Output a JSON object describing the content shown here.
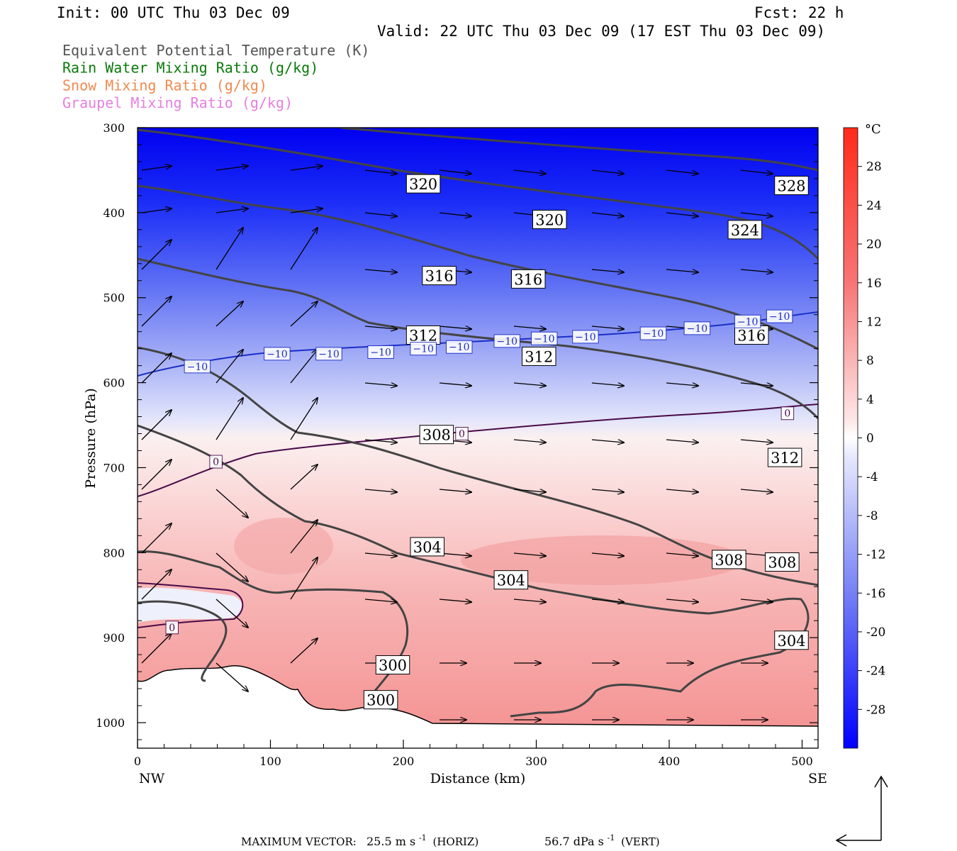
{
  "header": {
    "init": "Init: 00 UTC Thu 03 Dec 09",
    "fcst": "Fcst:   22 h",
    "valid": "Valid: 22 UTC Thu 03 Dec 09 (17 EST Thu 03 Dec 09)"
  },
  "legend": [
    {
      "label": "Equivalent Potential Temperature (K)",
      "color": "#555555"
    },
    {
      "label": "Rain Water Mixing Ratio (g/kg)",
      "color": "#0a7a0a"
    },
    {
      "label": "Snow Mixing Ratio (g/kg)",
      "color": "#f08a50"
    },
    {
      "label": "Graupel Mixing Ratio (g/kg)",
      "color": "#e77ee0"
    }
  ],
  "footer": {
    "max_vector_label": "MAXIMUM VECTOR:",
    "horiz_value": "25.5 m s",
    "horiz_unit": "(HORIZ)",
    "vert_value": "56.7 dPa s",
    "vert_unit": "(VERT)",
    "exponent": "-1"
  },
  "chart_data": {
    "type": "contour_cross_section",
    "xlabel": "Distance (km)",
    "ylabel": "Pressure (hPa)",
    "xlim": [
      0,
      512
    ],
    "ylim": [
      1030,
      300
    ],
    "x_ticks": [
      0,
      100,
      200,
      300,
      400,
      500
    ],
    "y_ticks": [
      300,
      400,
      500,
      600,
      700,
      800,
      900,
      1000
    ],
    "x_end_labels": {
      "left": "NW",
      "right": "SE"
    },
    "colorbar": {
      "unit": "°C",
      "ticks": [
        28,
        24,
        20,
        16,
        12,
        8,
        4,
        0,
        -4,
        -8,
        -12,
        -16,
        -20,
        -24,
        -28
      ],
      "range": [
        -32,
        32
      ],
      "cold_color": "#0000ff",
      "warm_color": "#ff2a1a",
      "neutral_color": "#ffffff"
    },
    "theta_e_labels": [
      {
        "text": "320",
        "x": 215,
        "p": 366
      },
      {
        "text": "328",
        "x": 492,
        "p": 368
      },
      {
        "text": "320",
        "x": 310,
        "p": 408
      },
      {
        "text": "324",
        "x": 457,
        "p": 420
      },
      {
        "text": "316",
        "x": 227,
        "p": 474
      },
      {
        "text": "316",
        "x": 294,
        "p": 478
      },
      {
        "text": "312",
        "x": 215,
        "p": 544
      },
      {
        "text": "316",
        "x": 462,
        "p": 544
      },
      {
        "text": "312",
        "x": 302,
        "p": 569
      },
      {
        "text": "308",
        "x": 225,
        "p": 661
      },
      {
        "text": "312",
        "x": 487,
        "p": 688
      },
      {
        "text": "304",
        "x": 218,
        "p": 793
      },
      {
        "text": "308",
        "x": 445,
        "p": 808
      },
      {
        "text": "308",
        "x": 485,
        "p": 811
      },
      {
        "text": "304",
        "x": 281,
        "p": 832
      },
      {
        "text": "304",
        "x": 492,
        "p": 903
      },
      {
        "text": "300",
        "x": 192,
        "p": 932
      },
      {
        "text": "300",
        "x": 183,
        "p": 973
      }
    ],
    "isotherm_labels": [
      {
        "text": "−10",
        "x": 45,
        "p": 581
      },
      {
        "text": "−10",
        "x": 105,
        "p": 566
      },
      {
        "text": "−10",
        "x": 144,
        "p": 566
      },
      {
        "text": "−10",
        "x": 183,
        "p": 564
      },
      {
        "text": "−10",
        "x": 215,
        "p": 560
      },
      {
        "text": "−10",
        "x": 242,
        "p": 558
      },
      {
        "text": "−10",
        "x": 278,
        "p": 551
      },
      {
        "text": "−10",
        "x": 306,
        "p": 548
      },
      {
        "text": "−10",
        "x": 337,
        "p": 546
      },
      {
        "text": "−10",
        "x": 388,
        "p": 542
      },
      {
        "text": "−10",
        "x": 421,
        "p": 536
      },
      {
        "text": "−10",
        "x": 459,
        "p": 528
      },
      {
        "text": "−10",
        "x": 483,
        "p": 522
      },
      {
        "text": "0",
        "x": 489,
        "p": 636
      },
      {
        "text": "0",
        "x": 244,
        "p": 660
      },
      {
        "text": "0",
        "x": 59,
        "p": 693
      },
      {
        "text": "0",
        "x": 26,
        "p": 888
      }
    ]
  }
}
